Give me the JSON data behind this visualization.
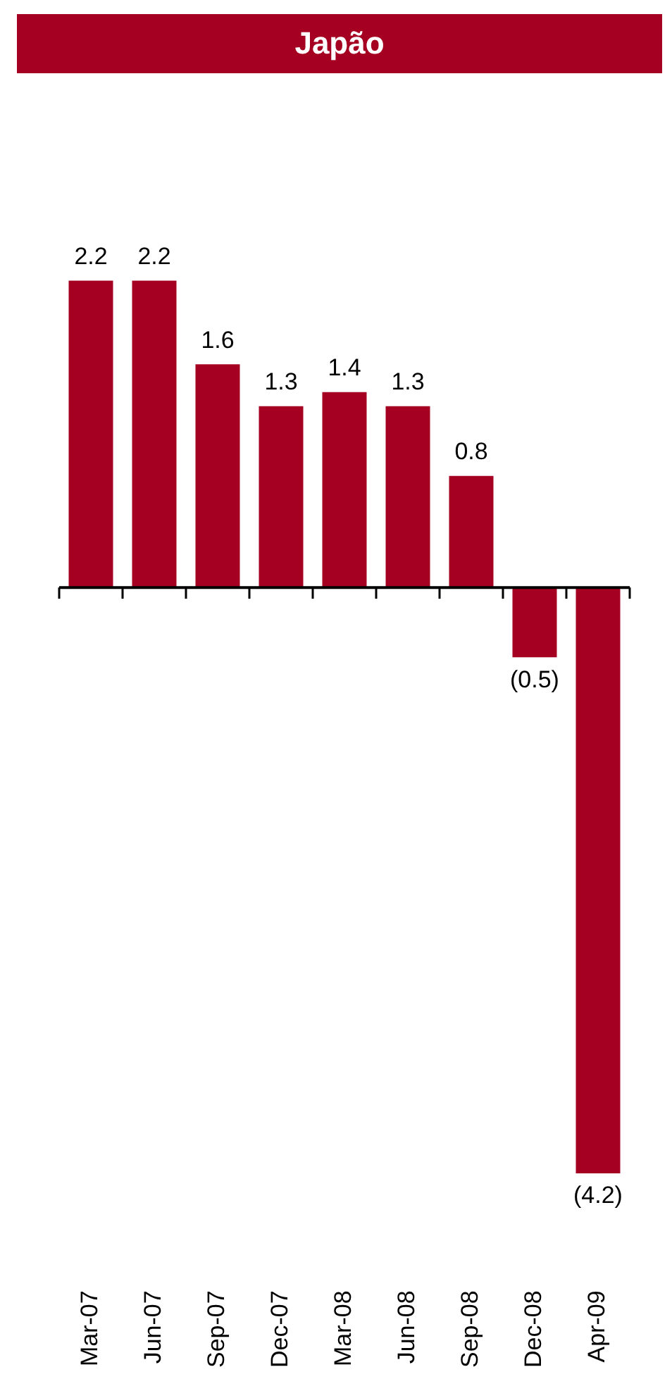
{
  "chart_data": {
    "type": "bar",
    "title": "Japão",
    "categories": [
      "Mar-07",
      "Jun-07",
      "Sep-07",
      "Dec-07",
      "Mar-08",
      "Jun-08",
      "Sep-08",
      "Dec-08",
      "Apr-09"
    ],
    "values": [
      2.2,
      2.2,
      1.6,
      1.3,
      1.4,
      1.3,
      0.8,
      -0.5,
      -4.2
    ],
    "value_labels": [
      "2.2",
      "2.2",
      "1.6",
      "1.3",
      "1.4",
      "1.3",
      "0.8",
      "(0.5)",
      "(4.2)"
    ],
    "color": "#a50021",
    "grid": false,
    "legend": false
  }
}
